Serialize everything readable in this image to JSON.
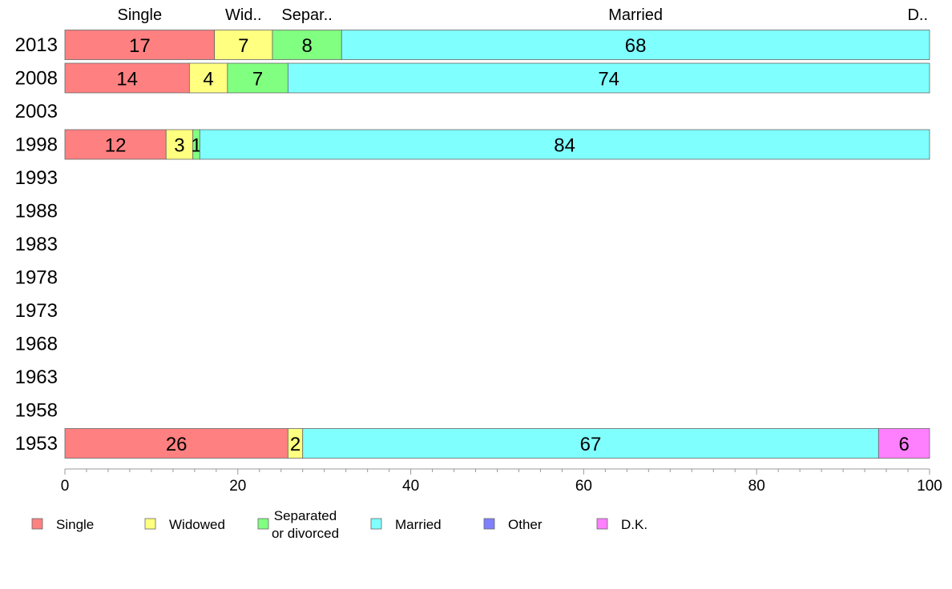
{
  "chart_data": {
    "type": "bar",
    "orientation": "horizontal",
    "stacked": true,
    "title": "",
    "xlabel": "",
    "ylabel": "",
    "xlim": [
      0,
      100
    ],
    "x_ticks": [
      "0",
      "20",
      "40",
      "60",
      "80",
      "100"
    ],
    "categories": [
      "2013",
      "2008",
      "2003",
      "1998",
      "1993",
      "1988",
      "1983",
      "1978",
      "1973",
      "1968",
      "1963",
      "1958",
      "1953"
    ],
    "series": [
      {
        "name": "Single",
        "color": "#ff8080",
        "values": [
          17.3,
          14.4,
          null,
          11.7,
          null,
          null,
          null,
          null,
          null,
          null,
          null,
          null,
          25.8
        ]
      },
      {
        "name": "Widowed",
        "color": "#ffff80",
        "values": [
          6.7,
          4.4,
          null,
          3.1,
          null,
          null,
          null,
          null,
          null,
          null,
          null,
          null,
          1.7
        ]
      },
      {
        "name": "Separated or divorced",
        "legend_lines": [
          "Separated",
          "or divorced"
        ],
        "color": "#80ff80",
        "values": [
          8.0,
          7.0,
          null,
          0.8,
          null,
          null,
          null,
          null,
          null,
          null,
          null,
          null,
          0
        ]
      },
      {
        "name": "Married",
        "color": "#80ffff",
        "values": [
          68.0,
          74.2,
          null,
          84.4,
          null,
          null,
          null,
          null,
          null,
          null,
          null,
          null,
          66.6
        ]
      },
      {
        "name": "Other",
        "color": "#8080ff",
        "values": [
          0,
          0,
          null,
          0,
          null,
          null,
          null,
          null,
          null,
          null,
          null,
          null,
          0
        ]
      },
      {
        "name": "D.K.",
        "color": "#ff80ff",
        "values": [
          0,
          0,
          null,
          0,
          null,
          null,
          null,
          null,
          null,
          null,
          null,
          null,
          5.9
        ]
      }
    ],
    "data_labels": [
      [
        "17",
        "7",
        "8",
        "68",
        "",
        ""
      ],
      [
        "14",
        "4",
        "7",
        "74",
        "",
        ""
      ],
      [],
      [
        "12",
        "3",
        "1",
        "84",
        "",
        ""
      ],
      [],
      [],
      [],
      [],
      [],
      [],
      [],
      [],
      [
        "26",
        "2",
        "",
        "67",
        "",
        "6"
      ]
    ],
    "top_labels": [
      "Single",
      "Wid..",
      "Separ..",
      "Married",
      "",
      "D.."
    ],
    "legend_position": "bottom"
  }
}
